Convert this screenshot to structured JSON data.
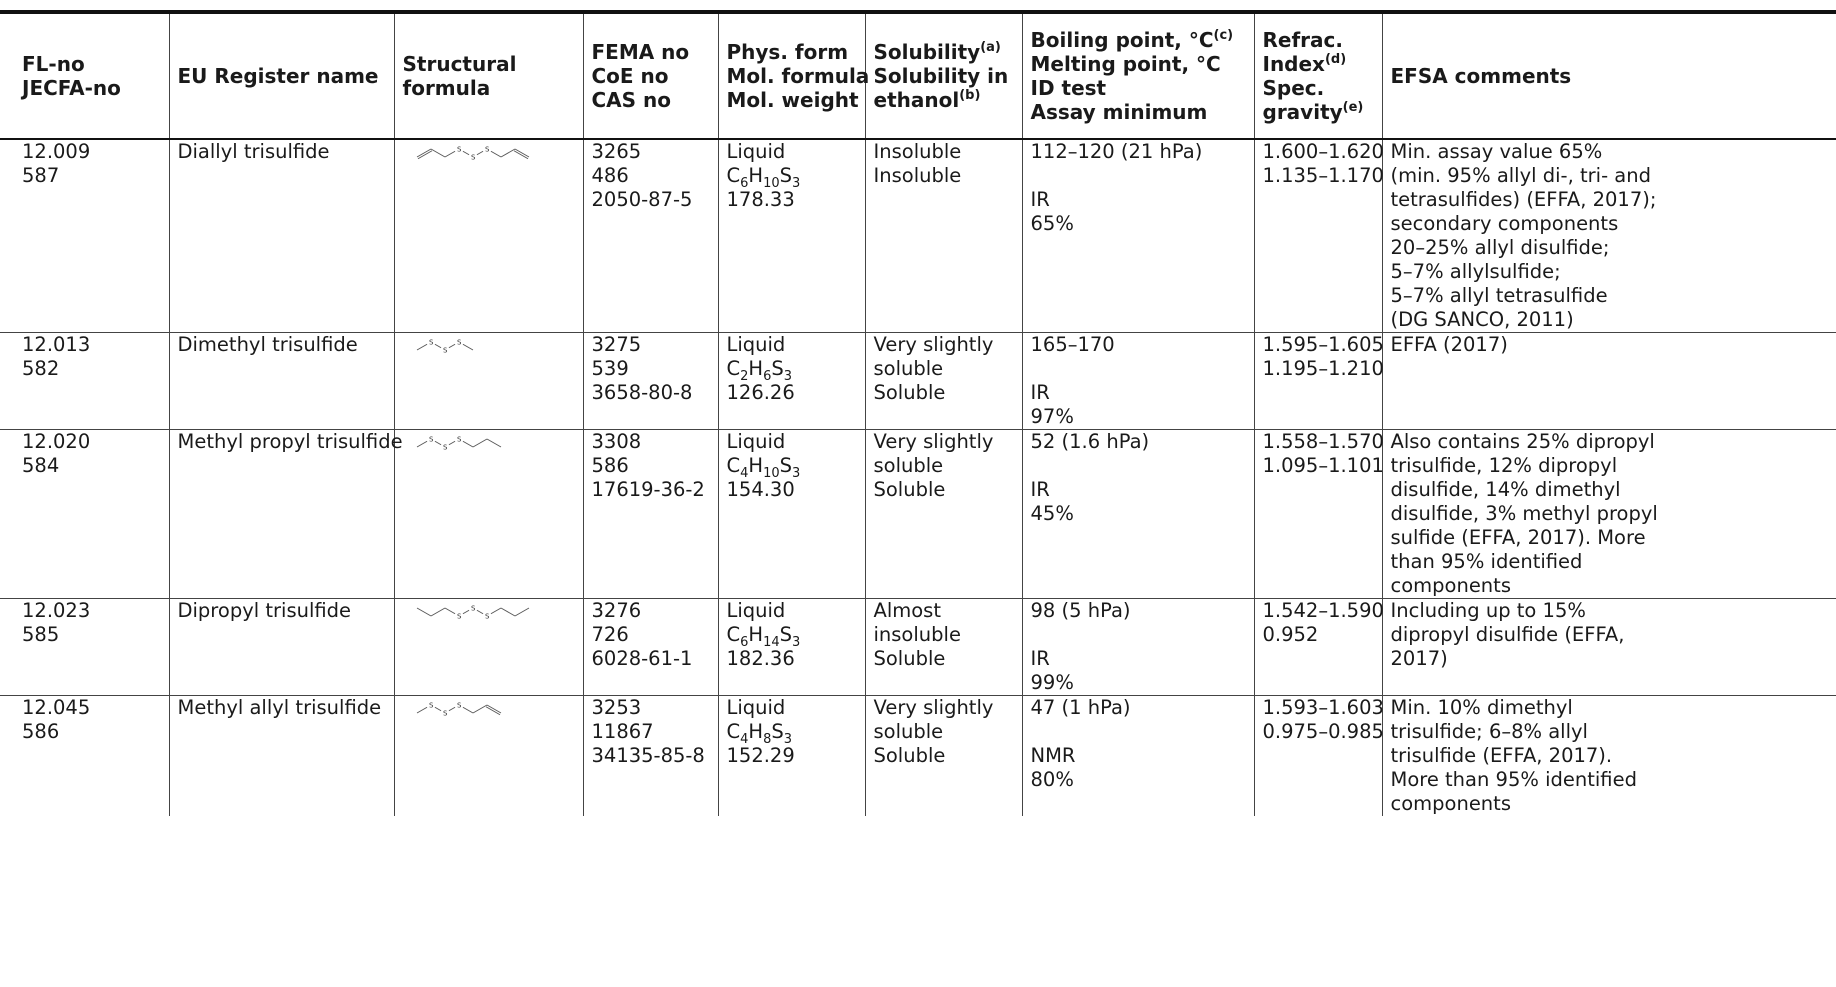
{
  "headers": {
    "c1": [
      "FL-no",
      "JECFA-no"
    ],
    "c2": [
      "EU Register name"
    ],
    "c3": [
      "Structural",
      "formula"
    ],
    "c4": [
      "FEMA no",
      "CoE no",
      "CAS no"
    ],
    "c5": [
      "Phys. form",
      "Mol. formula",
      "Mol. weight"
    ],
    "c6_l1": "Solubility",
    "c6_l1_sup": "(a)",
    "c6_l2": "Solubility in",
    "c6_l3": "ethanol",
    "c6_l3_sup": "(b)",
    "c7_l1": "Boiling point, °C",
    "c7_l1_sup": "(c)",
    "c7_l2": "Melting point, °C",
    "c7_l3": "ID test",
    "c7_l4": "Assay minimum",
    "c8_l1": "Refrac.",
    "c8_l2": "Index",
    "c8_l2_sup": "(d)",
    "c8_l3": "Spec.",
    "c8_l4": "gravity",
    "c8_l4_sup": "(e)",
    "c9": "EFSA comments"
  },
  "rows": [
    {
      "fl_no": "12.009",
      "jecfa_no": "587",
      "name": "Diallyl trisulfide",
      "structure_icon": "diallyl-trisulfide-structure",
      "fema": "3265",
      "coe": "486",
      "cas": "2050-87-5",
      "phys_form": "Liquid",
      "formula": {
        "p1": "C",
        "s1": "6",
        "p2": "H",
        "s2": "10",
        "p3": "S",
        "s3": "3"
      },
      "mol_weight": "178.33",
      "solubility": [
        "Insoluble"
      ],
      "solubility_ethanol": "Insoluble",
      "boiling_point": "112–120 (21 hPa)",
      "melting_point": "",
      "id_test": "IR",
      "assay_min": "65%",
      "refrac_index": "1.600–1.620",
      "spec_gravity": "1.135–1.170",
      "comments": [
        "Min. assay value 65%",
        "(min. 95% allyl di-, tri- and",
        "tetrasulfides) (EFFA, 2017);",
        "secondary components",
        "20–25% allyl disulfide;",
        "5–7% allylsulfide;",
        "5–7% allyl tetrasulfide",
        "(DG SANCO, 2011)"
      ]
    },
    {
      "fl_no": "12.013",
      "jecfa_no": "582",
      "name": "Dimethyl trisulfide",
      "structure_icon": "dimethyl-trisulfide-structure",
      "fema": "3275",
      "coe": "539",
      "cas": "3658-80-8",
      "phys_form": "Liquid",
      "formula": {
        "p1": "C",
        "s1": "2",
        "p2": "H",
        "s2": "6",
        "p3": "S",
        "s3": "3"
      },
      "mol_weight": "126.26",
      "solubility": [
        "Very slightly",
        "soluble"
      ],
      "solubility_ethanol": "Soluble",
      "boiling_point": "165–170",
      "melting_point": "",
      "id_test": "IR",
      "assay_min": "97%",
      "refrac_index": "1.595–1.605",
      "spec_gravity": "1.195–1.210",
      "comments": [
        "EFFA (2017)"
      ]
    },
    {
      "fl_no": "12.020",
      "jecfa_no": "584",
      "name": "Methyl propyl trisulfide",
      "structure_icon": "methyl-propyl-trisulfide-structure",
      "fema": "3308",
      "coe": "586",
      "cas": "17619-36-2",
      "phys_form": "Liquid",
      "formula": {
        "p1": "C",
        "s1": "4",
        "p2": "H",
        "s2": "10",
        "p3": "S",
        "s3": "3"
      },
      "mol_weight": "154.30",
      "solubility": [
        "Very slightly",
        "soluble"
      ],
      "solubility_ethanol": "Soluble",
      "boiling_point": "52 (1.6 hPa)",
      "melting_point": "",
      "id_test": "IR",
      "assay_min": "45%",
      "refrac_index": "1.558–1.570",
      "spec_gravity": "1.095–1.101",
      "comments": [
        "Also contains 25% dipropyl",
        "trisulfide, 12% dipropyl",
        "disulfide, 14% dimethyl",
        "disulfide, 3% methyl propyl",
        "sulfide (EFFA, 2017). More",
        "than 95% identified",
        "components"
      ]
    },
    {
      "fl_no": "12.023",
      "jecfa_no": "585",
      "name": "Dipropyl trisulfide",
      "structure_icon": "dipropyl-trisulfide-structure",
      "fema": "3276",
      "coe": "726",
      "cas": "6028-61-1",
      "phys_form": "Liquid",
      "formula": {
        "p1": "C",
        "s1": "6",
        "p2": "H",
        "s2": "14",
        "p3": "S",
        "s3": "3"
      },
      "mol_weight": "182.36",
      "solubility": [
        "Almost",
        "insoluble"
      ],
      "solubility_ethanol": "Soluble",
      "boiling_point": "98 (5 hPa)",
      "melting_point": "",
      "id_test": "IR",
      "assay_min": "99%",
      "refrac_index": "1.542–1.590",
      "spec_gravity": "0.952",
      "comments": [
        "Including up to 15%",
        "dipropyl disulfide (EFFA,",
        "2017)"
      ]
    },
    {
      "fl_no": "12.045",
      "jecfa_no": "586",
      "name": "Methyl allyl trisulfide",
      "structure_icon": "methyl-allyl-trisulfide-structure",
      "fema": "3253",
      "coe": "11867",
      "cas": "34135-85-8",
      "phys_form": "Liquid",
      "formula": {
        "p1": "C",
        "s1": "4",
        "p2": "H",
        "s2": "8",
        "p3": "S",
        "s3": "3"
      },
      "mol_weight": "152.29",
      "solubility": [
        "Very slightly",
        "soluble"
      ],
      "solubility_ethanol": "Soluble",
      "boiling_point": "47 (1 hPa)",
      "melting_point": "",
      "id_test": "NMR",
      "assay_min": "80%",
      "refrac_index": "1.593–1.603",
      "spec_gravity": "0.975–0.985",
      "comments": [
        "Min. 10% dimethyl",
        "trisulfide; 6–8% allyl",
        "trisulfide (EFFA, 2017).",
        "More than 95% identified",
        "components"
      ]
    }
  ],
  "structure_label": "S"
}
